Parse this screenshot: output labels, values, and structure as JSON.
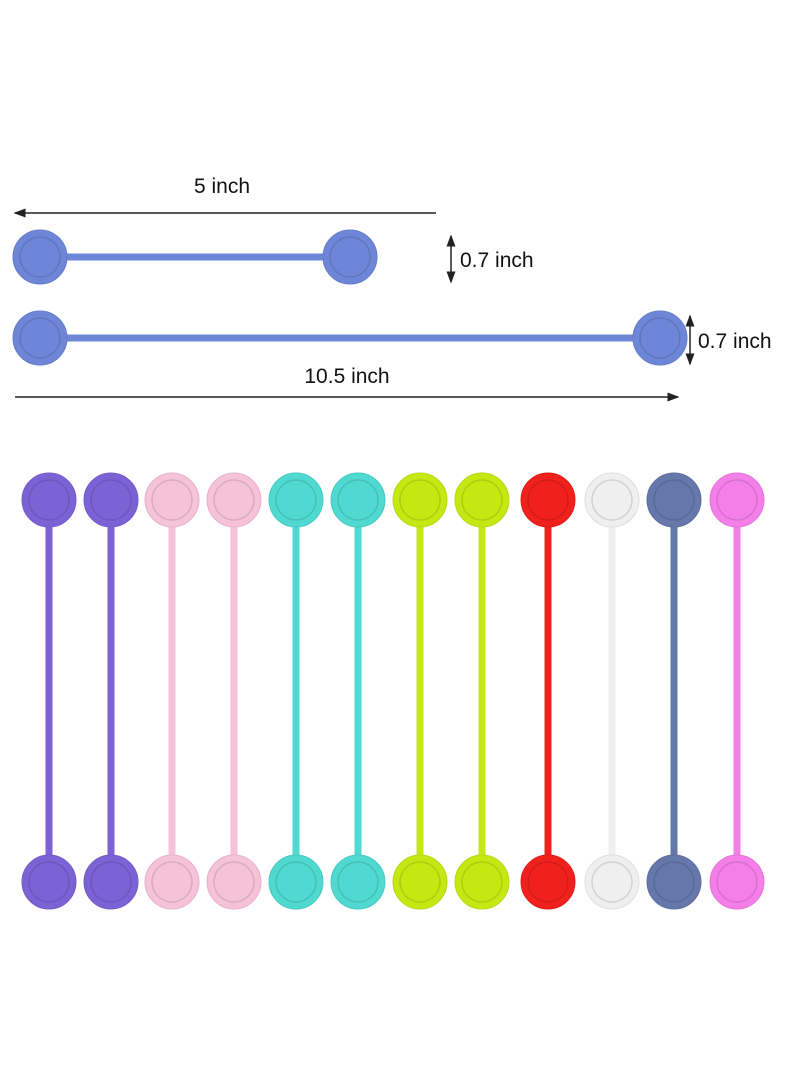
{
  "dimensions": {
    "short_length": "5 inch",
    "short_width": "0.7 inch",
    "long_width": "0.7 inch",
    "long_length": "10.5 inch"
  },
  "sample_tie_color": "#6e86d8",
  "tie_colors": [
    "#7b63d6",
    "#7b63d6",
    "#f6c2d8",
    "#f6c2d8",
    "#4fd9d0",
    "#4fd9d0",
    "#c6e812",
    "#c6e812",
    "#f0201c",
    "#efefef",
    "#6677aa",
    "#f47fe8"
  ],
  "arrow_color": "#222222"
}
